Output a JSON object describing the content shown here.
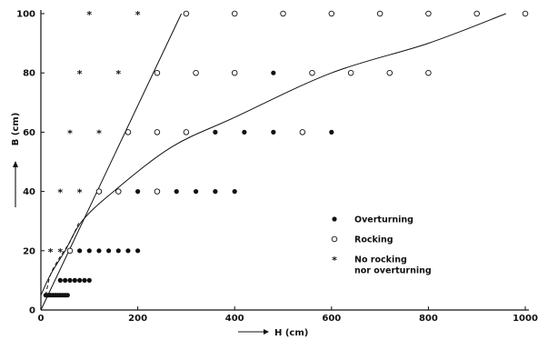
{
  "chart_data": {
    "type": "scatter",
    "xlabel": "H (cm)",
    "ylabel": "B (cm)",
    "xlim": [
      0,
      1000
    ],
    "ylim": [
      0,
      100
    ],
    "x_ticks": [
      0,
      200,
      400,
      600,
      800,
      1000
    ],
    "y_ticks": [
      0,
      20,
      40,
      60,
      80,
      100
    ],
    "grid": false,
    "legend_position": "center-right",
    "series": [
      {
        "name": "Overturning",
        "marker": "filled-circle",
        "points": [
          [
            480,
            80
          ],
          [
            360,
            60
          ],
          [
            420,
            60
          ],
          [
            480,
            60
          ],
          [
            600,
            60
          ],
          [
            200,
            40
          ],
          [
            280,
            40
          ],
          [
            320,
            40
          ],
          [
            360,
            40
          ],
          [
            400,
            40
          ],
          [
            80,
            20
          ],
          [
            100,
            20
          ],
          [
            120,
            20
          ],
          [
            140,
            20
          ],
          [
            160,
            20
          ],
          [
            180,
            20
          ],
          [
            200,
            20
          ],
          [
            40,
            10
          ],
          [
            50,
            10
          ],
          [
            60,
            10
          ],
          [
            70,
            10
          ],
          [
            80,
            10
          ],
          [
            90,
            10
          ],
          [
            100,
            10
          ],
          [
            10,
            5
          ],
          [
            15,
            5
          ],
          [
            20,
            5
          ],
          [
            25,
            5
          ],
          [
            30,
            5
          ],
          [
            35,
            5
          ],
          [
            40,
            5
          ],
          [
            45,
            5
          ],
          [
            50,
            5
          ],
          [
            55,
            5
          ]
        ]
      },
      {
        "name": "Rocking",
        "marker": "open-circle",
        "points": [
          [
            300,
            100
          ],
          [
            400,
            100
          ],
          [
            500,
            100
          ],
          [
            600,
            100
          ],
          [
            700,
            100
          ],
          [
            800,
            100
          ],
          [
            900,
            100
          ],
          [
            1000,
            100
          ],
          [
            240,
            80
          ],
          [
            320,
            80
          ],
          [
            400,
            80
          ],
          [
            560,
            80
          ],
          [
            640,
            80
          ],
          [
            720,
            80
          ],
          [
            800,
            80
          ],
          [
            180,
            60
          ],
          [
            240,
            60
          ],
          [
            300,
            60
          ],
          [
            540,
            60
          ],
          [
            120,
            40
          ],
          [
            160,
            40
          ],
          [
            240,
            40
          ],
          [
            60,
            20
          ]
        ]
      },
      {
        "name": "No rocking nor overturning",
        "marker": "star",
        "points": [
          [
            100,
            100
          ],
          [
            200,
            100
          ],
          [
            80,
            80
          ],
          [
            160,
            80
          ],
          [
            60,
            60
          ],
          [
            120,
            60
          ],
          [
            40,
            40
          ],
          [
            80,
            40
          ],
          [
            20,
            20
          ],
          [
            40,
            20
          ]
        ]
      }
    ],
    "lines": [
      {
        "style": "solid",
        "shape": "straight",
        "points": [
          [
            0,
            0
          ],
          [
            290,
            100
          ]
        ]
      },
      {
        "style": "solid",
        "shape": "curve",
        "points": [
          [
            0,
            5
          ],
          [
            20,
            12
          ],
          [
            50,
            20
          ],
          [
            85,
            30
          ],
          [
            150,
            40
          ],
          [
            270,
            55
          ],
          [
            400,
            65
          ],
          [
            600,
            80
          ],
          [
            800,
            90
          ],
          [
            960,
            100
          ]
        ]
      },
      {
        "style": "dashed",
        "shape": "curve",
        "points": [
          [
            10,
            5
          ],
          [
            20,
            12
          ],
          [
            40,
            18
          ],
          [
            60,
            23
          ],
          [
            80,
            30
          ]
        ]
      }
    ],
    "legend": {
      "items": [
        "Overturning",
        "Rocking",
        "No rocking\nnor overturning"
      ]
    }
  }
}
